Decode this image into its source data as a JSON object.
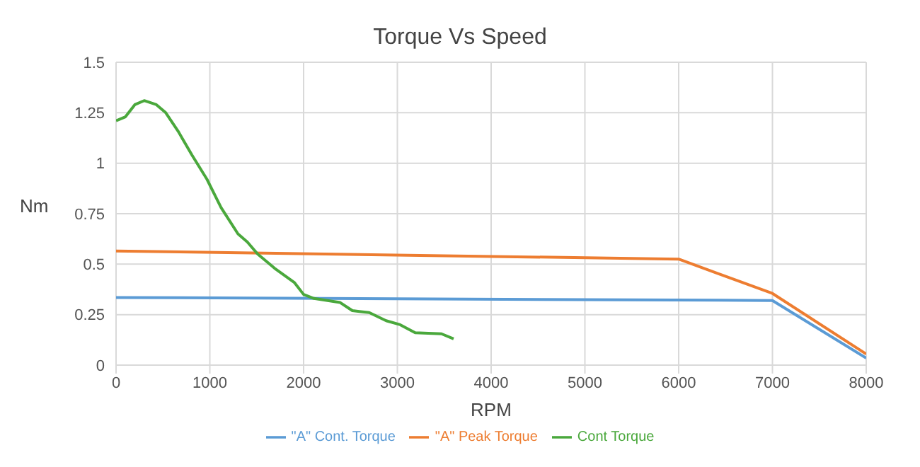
{
  "chart_data": {
    "type": "line",
    "title": "Torque Vs Speed",
    "xlabel": "RPM",
    "ylabel": "Nm",
    "xlim": [
      0,
      8000
    ],
    "xticks": [
      0,
      1000,
      2000,
      3000,
      4000,
      5000,
      6000,
      7000,
      8000
    ],
    "ylim": [
      0,
      1.5
    ],
    "yticks": [
      0,
      0.25,
      0.5,
      0.75,
      1,
      1.25,
      1.5
    ],
    "grid": true,
    "legend": "bottom",
    "marker": "none",
    "line_style": "solid",
    "series": [
      {
        "name": "\"A\"  Cont. Torque",
        "color": "#5b9bd5",
        "x": [
          0,
          7000,
          8000
        ],
        "values": [
          0.335,
          0.32,
          0.035
        ]
      },
      {
        "name": "\"A\" Peak Torque",
        "color": "#ed7d31",
        "x": [
          0,
          6000,
          7000,
          8000
        ],
        "values": [
          0.565,
          0.525,
          0.355,
          0.055
        ]
      },
      {
        "name": "Cont Torque",
        "color": "#4aa83c",
        "x": [
          0,
          100,
          200,
          300,
          430,
          530,
          660,
          810,
          970,
          1120,
          1300,
          1400,
          1510,
          1690,
          1900,
          2000,
          2110,
          2390,
          2520,
          2700,
          2880,
          3030,
          3190,
          3470,
          3600
        ],
        "values": [
          1.21,
          1.23,
          1.29,
          1.31,
          1.29,
          1.25,
          1.16,
          1.04,
          0.92,
          0.78,
          0.65,
          0.61,
          0.55,
          0.48,
          0.41,
          0.35,
          0.33,
          0.31,
          0.27,
          0.26,
          0.22,
          0.2,
          0.16,
          0.155,
          0.13
        ]
      }
    ]
  }
}
